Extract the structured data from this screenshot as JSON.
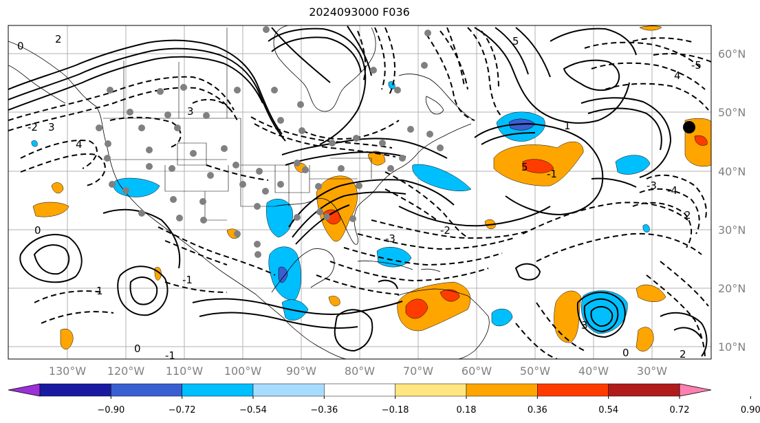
{
  "title": "2024093000 F036",
  "lat_labels": [
    "60°N",
    "50°N",
    "40°N",
    "30°N",
    "20°N",
    "10°N"
  ],
  "lon_labels": [
    "130°W",
    "120°W",
    "110°W",
    "100°W",
    "90°W",
    "80°W",
    "70°W",
    "60°W",
    "50°W",
    "40°W",
    "30°W"
  ],
  "colorbar": {
    "labels": [
      "−0.90",
      "−0.72",
      "−0.54",
      "−0.36",
      "−0.18",
      "0.18",
      "0.36",
      "0.54",
      "0.72",
      "0.90"
    ],
    "colors": [
      "#9b30d9",
      "#1a1aa0",
      "#3a5fd0",
      "#00bfff",
      "#a8dcff",
      "#ffffff",
      "#ffe680",
      "#ffa500",
      "#ff3c00",
      "#b01c1c",
      "#ff80b0"
    ]
  },
  "contour_labels": [
    "0",
    "2",
    "3",
    "4",
    "5",
    "-1",
    "1",
    "-2",
    "3",
    "-3",
    "-5",
    "4",
    "2",
    "0",
    "1",
    "-1",
    "0",
    "-2",
    "-3",
    "5",
    "-4",
    "2",
    "3",
    "0",
    "-1"
  ],
  "colors": {
    "land_border": "#000000",
    "grid": "#b0b0b0",
    "observation_dot": "#808080",
    "storm_marker": "#000000"
  }
}
